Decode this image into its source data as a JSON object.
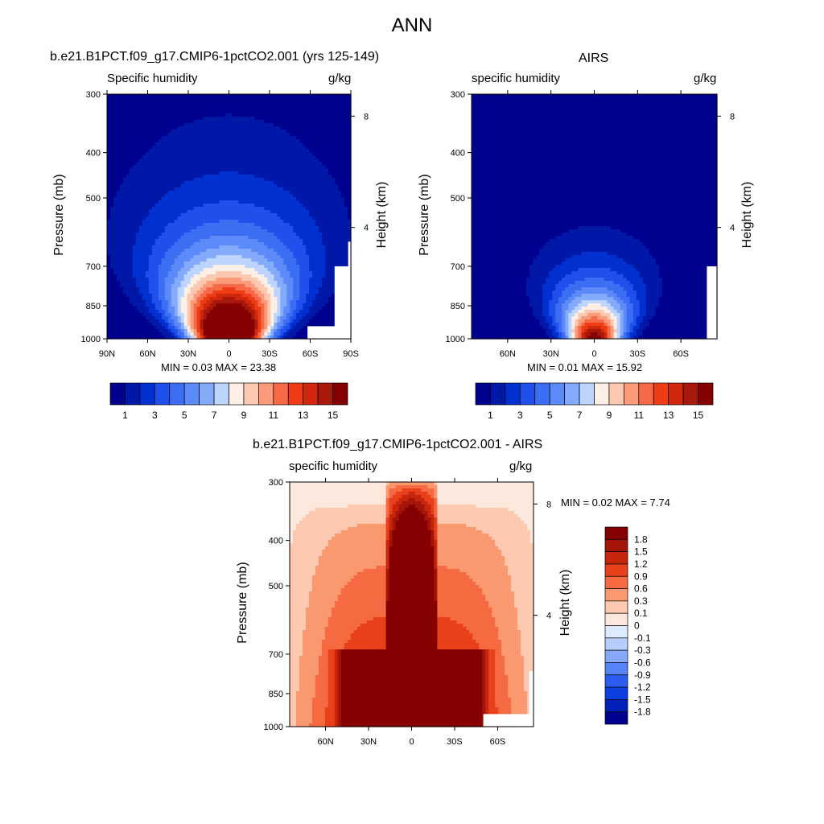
{
  "figure": {
    "title": "ANN",
    "panels": [
      {
        "title": "b.e21.B1PCT.f09_g17.CMIP6-1pctCO2.001 (yrs 125-149)",
        "left_string": "Specific humidity",
        "right_string": "g/kg",
        "ylabel": "Pressure (mb)",
        "ylabel_right": "Height (km)",
        "minmax": "MIN =   0.03  MAX =  23.38"
      },
      {
        "title": "AIRS",
        "left_string": "specific humidity",
        "right_string": "g/kg",
        "ylabel": "Pressure (mb)",
        "ylabel_right": "Height (km)",
        "minmax": "MIN =   0.01  MAX =  15.92"
      },
      {
        "title": "b.e21.B1PCT.f09_g17.CMIP6-1pctCO2.001 - AIRS",
        "left_string": "specific humidity",
        "right_string": "g/kg",
        "ylabel": "Pressure (mb)",
        "ylabel_right": "Height (km)",
        "minmax": "MIN =   0.02  MAX =   7.74"
      }
    ]
  },
  "chart_data": [
    {
      "type": "heatmap",
      "title": "b.e21.B1PCT.f09_g17.CMIP6-1pctCO2.001 (yrs 125-149)",
      "variable": "Specific humidity",
      "units": "g/kg",
      "ylabel": "Pressure (mb)",
      "ylabel_right": "Height (km)",
      "x_ticks": [
        "90N",
        "60N",
        "30N",
        "0",
        "30S",
        "60S",
        "90S"
      ],
      "x_tick_values": [
        90,
        60,
        30,
        0,
        -30,
        -60,
        -90
      ],
      "xlim": [
        90,
        -90
      ],
      "y_ticks": [
        300,
        400,
        500,
        700,
        850,
        1000
      ],
      "ylim": [
        1000,
        300
      ],
      "y_scale": "log",
      "right_ticks": [
        "8",
        "4"
      ],
      "right_tick_values": [
        8,
        4
      ],
      "levels": [
        1,
        2,
        3,
        4,
        5,
        6,
        7,
        8,
        9,
        10,
        11,
        12,
        13,
        14,
        15
      ],
      "colorbar_labels": [
        "1",
        "3",
        "5",
        "7",
        "9",
        "11",
        "13",
        "15"
      ],
      "colors": [
        "#00008f",
        "#0018a8",
        "#0030d0",
        "#2050ec",
        "#3c6ef4",
        "#5c8af8",
        "#84aafb",
        "#bcd4fe",
        "#fdeee6",
        "#fdc8b0",
        "#fc9a7a",
        "#f76a48",
        "#ee3c16",
        "#d0270d",
        "#a8180b",
        "#850000"
      ],
      "peak_value": 23.38,
      "width_scale": 2.1,
      "height_scale": 1.0,
      "surface": [
        {
          "lat": -58,
          "p": 940
        },
        {
          "lat": -78,
          "p": 700
        },
        {
          "lat": -88,
          "p": 620
        }
      ],
      "min": 0.03,
      "max": 23.38
    },
    {
      "type": "heatmap",
      "title": "AIRS",
      "variable": "specific humidity",
      "units": "g/kg",
      "ylabel": "Pressure (mb)",
      "ylabel_right": "Height (km)",
      "x_ticks": [
        "60N",
        "30N",
        "0",
        "30S",
        "60S"
      ],
      "x_tick_values": [
        60,
        30,
        0,
        -30,
        -60
      ],
      "xlim": [
        85,
        -85
      ],
      "y_ticks": [
        300,
        400,
        500,
        700,
        850,
        1000
      ],
      "ylim": [
        1000,
        300
      ],
      "y_scale": "log",
      "right_ticks": [
        "8",
        "4"
      ],
      "right_tick_values": [
        8,
        4
      ],
      "levels": [
        1,
        2,
        3,
        4,
        5,
        6,
        7,
        8,
        9,
        10,
        11,
        12,
        13,
        14,
        15
      ],
      "colorbar_labels": [
        "1",
        "3",
        "5",
        "7",
        "9",
        "11",
        "13",
        "15"
      ],
      "colors": [
        "#00008f",
        "#0018a8",
        "#0030d0",
        "#2050ec",
        "#3c6ef4",
        "#5c8af8",
        "#84aafb",
        "#bcd4fe",
        "#fdeee6",
        "#fdc8b0",
        "#fc9a7a",
        "#f76a48",
        "#ee3c16",
        "#d0270d",
        "#a8180b",
        "#850000"
      ],
      "peak_value": 15.92,
      "width_scale": 1.5,
      "height_scale": 0.7,
      "surface": [
        {
          "lat": -78,
          "p": 700
        },
        {
          "lat": -84,
          "p": 830
        }
      ],
      "min": 0.01,
      "max": 15.92
    },
    {
      "type": "heatmap",
      "title": "b.e21.B1PCT.f09_g17.CMIP6-1pctCO2.001 - AIRS",
      "variable": "specific humidity",
      "units": "g/kg",
      "ylabel": "Pressure (mb)",
      "ylabel_right": "Height (km)",
      "x_ticks": [
        "60N",
        "30N",
        "0",
        "30S",
        "60S"
      ],
      "x_tick_values": [
        60,
        30,
        0,
        -30,
        -60
      ],
      "xlim": [
        85,
        -85
      ],
      "y_ticks": [
        300,
        400,
        500,
        700,
        850,
        1000
      ],
      "ylim": [
        1000,
        300
      ],
      "y_scale": "log",
      "right_ticks": [
        "8",
        "4"
      ],
      "right_tick_values": [
        8,
        4
      ],
      "levels": [
        -1.8,
        -1.5,
        -1.2,
        -0.9,
        -0.6,
        -0.3,
        -0.1,
        0,
        0.1,
        0.3,
        0.6,
        0.9,
        1.2,
        1.5,
        1.8
      ],
      "colorbar_labels": [
        "1.8",
        "1.5",
        "1.2",
        "0.9",
        "0.6",
        "0.3",
        "0.1",
        "0",
        "-0.1",
        "-0.3",
        "-0.6",
        "-0.9",
        "-1.2",
        "-1.5",
        "-1.8"
      ],
      "colors": [
        "#00008f",
        "#0020b8",
        "#0c3ee0",
        "#2c5cf0",
        "#5683f7",
        "#87a9fb",
        "#b7cdfd",
        "#deebff",
        "#fde8de",
        "#fdc9b0",
        "#fa9870",
        "#f56a40",
        "#e8401a",
        "#c8260c",
        "#a51409",
        "#850000"
      ],
      "width_scale": 1.0,
      "height_scale": 1.0,
      "surface": [
        {
          "lat": -50,
          "p": 940
        },
        {
          "lat": -82,
          "p": 760
        }
      ],
      "min": 0.02,
      "max": 7.74
    }
  ]
}
